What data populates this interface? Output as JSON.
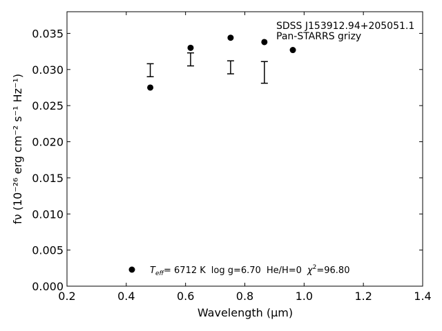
{
  "chart_data": {
    "type": "scatter",
    "title": "",
    "object_name": "SDSS J153912.94+205051.1",
    "survey": "Pan-STARRS grizy",
    "xlabel": "Wavelength (μm)",
    "ylabel": "fν (10⁻²⁶ erg cm⁻² s⁻¹ Hz⁻¹)",
    "xlim": [
      0.2,
      1.4
    ],
    "ylim": [
      0.0,
      0.038
    ],
    "xticks": [
      "0.2",
      "0.4",
      "0.6",
      "0.8",
      "1.0",
      "1.2",
      "1.4"
    ],
    "yticks": [
      "0.000",
      "0.005",
      "0.010",
      "0.015",
      "0.020",
      "0.025",
      "0.030",
      "0.035"
    ],
    "grid": false,
    "legend_position": "bottom-center",
    "marker_color": "#000000",
    "series": [
      {
        "kind": "model_points",
        "x": [
          0.481,
          0.617,
          0.752,
          0.866,
          0.962
        ],
        "y": [
          0.0275,
          0.033,
          0.0344,
          0.0338,
          0.0327
        ]
      },
      {
        "kind": "observed_errorbars",
        "x": [
          0.481,
          0.617,
          0.752,
          0.866
        ],
        "y": [
          0.0299,
          0.0314,
          0.0303,
          0.0296
        ],
        "yerr": [
          0.0009,
          0.0009,
          0.0009,
          0.0015
        ]
      }
    ],
    "legend_text": {
      "teff_symbol": "T",
      "teff_subscript": "eff",
      "teff_value": "=  6712 K",
      "logg": "log g=6.70",
      "heh": "He/H=0",
      "chi_symbol": "χ",
      "chi_power": "2",
      "chi_value": "=96.80"
    }
  }
}
